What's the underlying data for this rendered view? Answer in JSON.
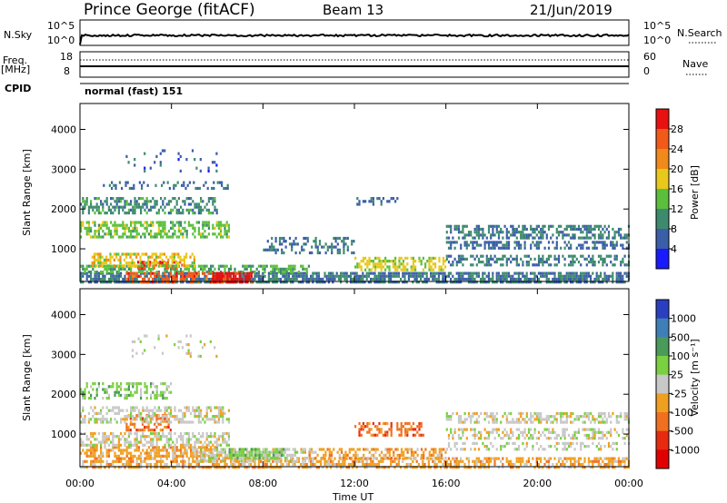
{
  "header": {
    "station": "Prince George (fitACF)",
    "beam": "Beam 13",
    "date": "21/Jun/2019"
  },
  "panels": {
    "nsky": {
      "label": "N.Sky",
      "left_ticks": [
        "10^5",
        "10^0"
      ],
      "right_ticks": [
        "10^5",
        "10^0"
      ],
      "right_label": "N.Search"
    },
    "freq": {
      "label": "Freq.",
      "unit": "[MHz]",
      "left_ticks": [
        "18",
        "8"
      ],
      "right_ticks": [
        "60",
        "0"
      ],
      "right_label": "Nave"
    },
    "cpid": {
      "label": "CPID",
      "value": "normal (fast) 151"
    }
  },
  "colors": {
    "background": "#ffffff",
    "axis": "#000000",
    "power_scale": [
      "#1a1aff",
      "#3b5ea8",
      "#3e8a6e",
      "#5bbf3d",
      "#e8c81a",
      "#f08a1a",
      "#f25a1a",
      "#e81010"
    ],
    "velocity_scale": [
      "#2a3fc0",
      "#3f7fb8",
      "#4a9a5a",
      "#7ad040",
      "#c8c8c8",
      "#f0a020",
      "#f07020",
      "#e82a10",
      "#e00000"
    ]
  },
  "chart_data": [
    {
      "type": "heatmap",
      "name": "power",
      "ylabel": "Slant Range [km]",
      "xlabel": "",
      "x_ticks": [
        "00:00",
        "04:00",
        "08:00",
        "12:00",
        "16:00",
        "20:00",
        "00:00"
      ],
      "y_ticks": [
        1000,
        2000,
        3000,
        4000
      ],
      "xlim_hours": [
        0,
        24
      ],
      "ylim_km": [
        180,
        4650
      ],
      "colorbar": {
        "label": "Power [dB]",
        "ticks": [
          "4",
          "8",
          "12",
          "16",
          "20",
          "24",
          "28"
        ],
        "range": [
          0,
          30
        ]
      },
      "regions": [
        {
          "h0": 0.0,
          "h1": 24.0,
          "r0": 200,
          "r1": 420,
          "level": 8,
          "density": 0.75
        },
        {
          "h0": 0.0,
          "h1": 10.0,
          "r0": 420,
          "r1": 600,
          "level": 12,
          "density": 0.6
        },
        {
          "h0": 2.0,
          "h1": 6.5,
          "r0": 180,
          "r1": 420,
          "level": 26,
          "density": 0.55
        },
        {
          "h0": 5.8,
          "h1": 7.5,
          "r0": 180,
          "r1": 420,
          "level": 29,
          "density": 0.7
        },
        {
          "h0": 2.5,
          "h1": 4.5,
          "r0": 500,
          "r1": 700,
          "level": 27,
          "density": 0.5
        },
        {
          "h0": 0.5,
          "h1": 5.0,
          "r0": 600,
          "r1": 900,
          "level": 18,
          "density": 0.55
        },
        {
          "h0": 0.0,
          "h1": 6.5,
          "r0": 1300,
          "r1": 1700,
          "level": 14,
          "density": 0.55
        },
        {
          "h0": 0.0,
          "h1": 6.0,
          "r0": 1900,
          "r1": 2300,
          "level": 10,
          "density": 0.5
        },
        {
          "h0": 1.0,
          "h1": 6.5,
          "r0": 2500,
          "r1": 2700,
          "level": 7,
          "density": 0.3
        },
        {
          "h0": 8.0,
          "h1": 12.0,
          "r0": 900,
          "r1": 1300,
          "level": 8,
          "density": 0.35
        },
        {
          "h0": 12.0,
          "h1": 16.0,
          "r0": 500,
          "r1": 800,
          "level": 17,
          "density": 0.5
        },
        {
          "h0": 16.0,
          "h1": 24.0,
          "r0": 1300,
          "r1": 1600,
          "level": 9,
          "density": 0.55
        },
        {
          "h0": 16.0,
          "h1": 24.0,
          "r0": 1000,
          "r1": 1200,
          "level": 7,
          "density": 0.45
        },
        {
          "h0": 16.0,
          "h1": 24.0,
          "r0": 600,
          "r1": 850,
          "level": 9,
          "density": 0.45
        },
        {
          "h0": 2.0,
          "h1": 6.0,
          "r0": 2950,
          "r1": 3500,
          "level": 6,
          "density": 0.1
        },
        {
          "h0": 12.0,
          "h1": 14.0,
          "r0": 2100,
          "r1": 2300,
          "level": 7,
          "density": 0.25
        }
      ]
    },
    {
      "type": "heatmap",
      "name": "velocity",
      "ylabel": "Slant Range [km]",
      "xlabel": "Time UT",
      "x_ticks": [
        "00:00",
        "04:00",
        "08:00",
        "12:00",
        "16:00",
        "20:00",
        "00:00"
      ],
      "y_ticks": [
        1000,
        2000,
        3000,
        4000
      ],
      "xlim_hours": [
        0,
        24
      ],
      "ylim_km": [
        180,
        4650
      ],
      "colorbar": {
        "label": "Velocity [m s⁻¹]",
        "ticks": [
          "1000",
          "500",
          "100",
          "25",
          "-25",
          "-100",
          "-500",
          "-1000"
        ]
      },
      "regions": [
        {
          "h0": 0.0,
          "h1": 24.0,
          "r0": 200,
          "r1": 420,
          "level": 5,
          "density": 0.6
        },
        {
          "h0": 0.0,
          "h1": 6.0,
          "r0": 450,
          "r1": 700,
          "level": 5,
          "density": 0.6
        },
        {
          "h0": 5.0,
          "h1": 10.0,
          "r0": 350,
          "r1": 650,
          "level": 4,
          "density": 0.6
        },
        {
          "h0": 6.5,
          "h1": 9.0,
          "r0": 400,
          "r1": 650,
          "level": 3,
          "density": 0.6
        },
        {
          "h0": 0.0,
          "h1": 6.5,
          "r0": 750,
          "r1": 1050,
          "level": 4,
          "density": 0.55
        },
        {
          "h0": 2.0,
          "h1": 4.0,
          "r0": 1100,
          "r1": 1500,
          "level": 6,
          "density": 0.5
        },
        {
          "h0": 0.0,
          "h1": 6.5,
          "r0": 1300,
          "r1": 1700,
          "level": 4,
          "density": 0.5
        },
        {
          "h0": 0.0,
          "h1": 4.0,
          "r0": 1900,
          "r1": 2300,
          "level": 3,
          "density": 0.45
        },
        {
          "h0": 10.0,
          "h1": 16.0,
          "r0": 400,
          "r1": 650,
          "level": 5,
          "density": 0.55
        },
        {
          "h0": 12.0,
          "h1": 15.0,
          "r0": 1000,
          "r1": 1300,
          "level": 6,
          "density": 0.45
        },
        {
          "h0": 16.0,
          "h1": 24.0,
          "r0": 1300,
          "r1": 1550,
          "level": 4,
          "density": 0.55
        },
        {
          "h0": 16.0,
          "h1": 24.0,
          "r0": 900,
          "r1": 1150,
          "level": 4,
          "density": 0.45
        },
        {
          "h0": 16.0,
          "h1": 24.0,
          "r0": 600,
          "r1": 800,
          "level": 4,
          "density": 0.4
        },
        {
          "h0": 2.0,
          "h1": 6.0,
          "r0": 2950,
          "r1": 3500,
          "level": 4,
          "density": 0.1
        }
      ]
    }
  ]
}
